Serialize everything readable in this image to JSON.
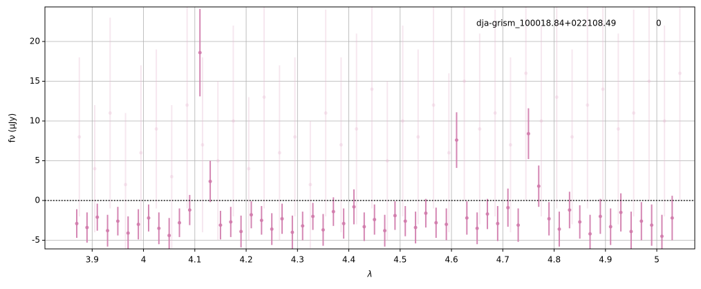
{
  "chart_data": {
    "type": "errorbar",
    "title": "dja-grism_100018.84+022108.49",
    "annotation": "0",
    "xlabel": "λ",
    "ylabel": "fν (μJy)",
    "xlim": [
      3.808,
      5.074
    ],
    "ylim": [
      -6.09,
      24.35
    ],
    "xticks": [
      3.9,
      4.0,
      4.1,
      4.2,
      4.3,
      4.4,
      4.5,
      4.6,
      4.7,
      4.8,
      4.9,
      5.0
    ],
    "yticks": [
      -5,
      0,
      5,
      10,
      15,
      20
    ],
    "grid": true,
    "hline": 0,
    "series": [
      {
        "color": "#e8bcd3",
        "opacity": 0.35,
        "x": [
          3.875,
          3.905,
          3.935,
          3.965,
          3.995,
          4.025,
          4.055,
          4.085,
          4.115,
          4.145,
          4.175,
          4.205,
          4.235,
          4.265,
          4.295,
          4.325,
          4.355,
          4.385,
          4.415,
          4.445,
          4.475,
          4.505,
          4.535,
          4.565,
          4.595,
          4.625,
          4.655,
          4.685,
          4.715,
          4.745,
          4.775,
          4.805,
          4.835,
          4.865,
          4.895,
          4.925,
          4.955,
          4.985,
          5.015,
          5.045
        ],
        "values": [
          8,
          4,
          11,
          2,
          6,
          9,
          3,
          12,
          7,
          5,
          10,
          4,
          13,
          6,
          8,
          2,
          11,
          7,
          9,
          14,
          5,
          10,
          8,
          12,
          6,
          15,
          9,
          11,
          7,
          16,
          10,
          13,
          8,
          12,
          14,
          9,
          11,
          15,
          10,
          16
        ],
        "errors": [
          10,
          8,
          12,
          9,
          11,
          10,
          9,
          13,
          11,
          10,
          12,
          9,
          14,
          11,
          10,
          8,
          13,
          11,
          12,
          15,
          10,
          12,
          11,
          13,
          10,
          15,
          12,
          13,
          11,
          16,
          12,
          14,
          11,
          13,
          14,
          12,
          13,
          15,
          12,
          16
        ]
      },
      {
        "color": "#d07aab",
        "opacity": 0.9,
        "x": [
          3.87,
          3.89,
          3.91,
          3.93,
          3.95,
          3.97,
          3.99,
          4.01,
          4.03,
          4.05,
          4.07,
          4.09,
          4.11,
          4.13,
          4.15,
          4.17,
          4.19,
          4.21,
          4.23,
          4.25,
          4.27,
          4.29,
          4.31,
          4.33,
          4.35,
          4.37,
          4.39,
          4.41,
          4.43,
          4.45,
          4.47,
          4.49,
          4.51,
          4.53,
          4.55,
          4.57,
          4.59,
          4.61,
          4.63,
          4.65,
          4.67,
          4.69,
          4.71,
          4.73,
          4.75,
          4.77,
          4.79,
          4.81,
          4.83,
          4.85,
          4.87,
          4.89,
          4.91,
          4.93,
          4.95,
          4.97,
          4.99,
          5.01,
          5.03
        ],
        "values": [
          -2.9,
          -3.4,
          -2.1,
          -3.8,
          -2.6,
          -4.1,
          -3.0,
          -2.2,
          -3.5,
          -4.4,
          -2.8,
          -1.2,
          18.6,
          2.4,
          -3.1,
          -2.7,
          -3.9,
          -1.8,
          -2.5,
          -3.6,
          -2.3,
          -4.0,
          -3.2,
          -2.0,
          -3.7,
          -1.4,
          -2.9,
          -0.8,
          -3.3,
          -2.4,
          -3.8,
          -1.9,
          -2.6,
          -3.4,
          -1.6,
          -2.8,
          -3.0,
          7.6,
          -2.2,
          -3.5,
          -1.7,
          -2.9,
          -0.9,
          -3.1,
          8.4,
          1.8,
          -2.3,
          -3.6,
          -1.2,
          -2.7,
          -4.2,
          -2.0,
          -3.3,
          -1.5,
          -3.9,
          -2.6,
          -3.1,
          -4.5,
          -2.2
        ],
        "errors": [
          1.8,
          1.9,
          1.7,
          2.0,
          1.8,
          2.1,
          1.9,
          1.7,
          2.0,
          2.2,
          1.8,
          1.9,
          5.5,
          2.6,
          1.8,
          1.9,
          2.0,
          1.7,
          1.8,
          2.0,
          1.9,
          2.1,
          1.8,
          1.7,
          2.0,
          1.8,
          1.9,
          2.2,
          1.8,
          1.9,
          2.0,
          1.8,
          1.9,
          2.0,
          1.8,
          1.9,
          2.0,
          3.5,
          2.1,
          2.0,
          1.9,
          2.2,
          2.4,
          2.1,
          3.2,
          2.6,
          2.1,
          2.2,
          2.3,
          2.1,
          2.4,
          2.2,
          2.3,
          2.4,
          2.5,
          2.4,
          2.6,
          2.7,
          2.8
        ]
      }
    ]
  }
}
